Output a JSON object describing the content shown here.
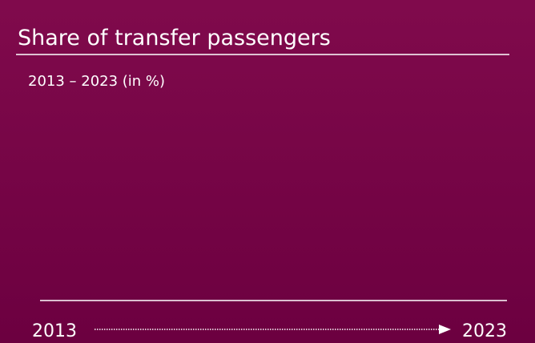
{
  "header": {
    "title": "Share of transfer passengers",
    "subtitle": "2013 – 2023 (in %)"
  },
  "axis": {
    "start": "2013",
    "end": "2023"
  }
}
